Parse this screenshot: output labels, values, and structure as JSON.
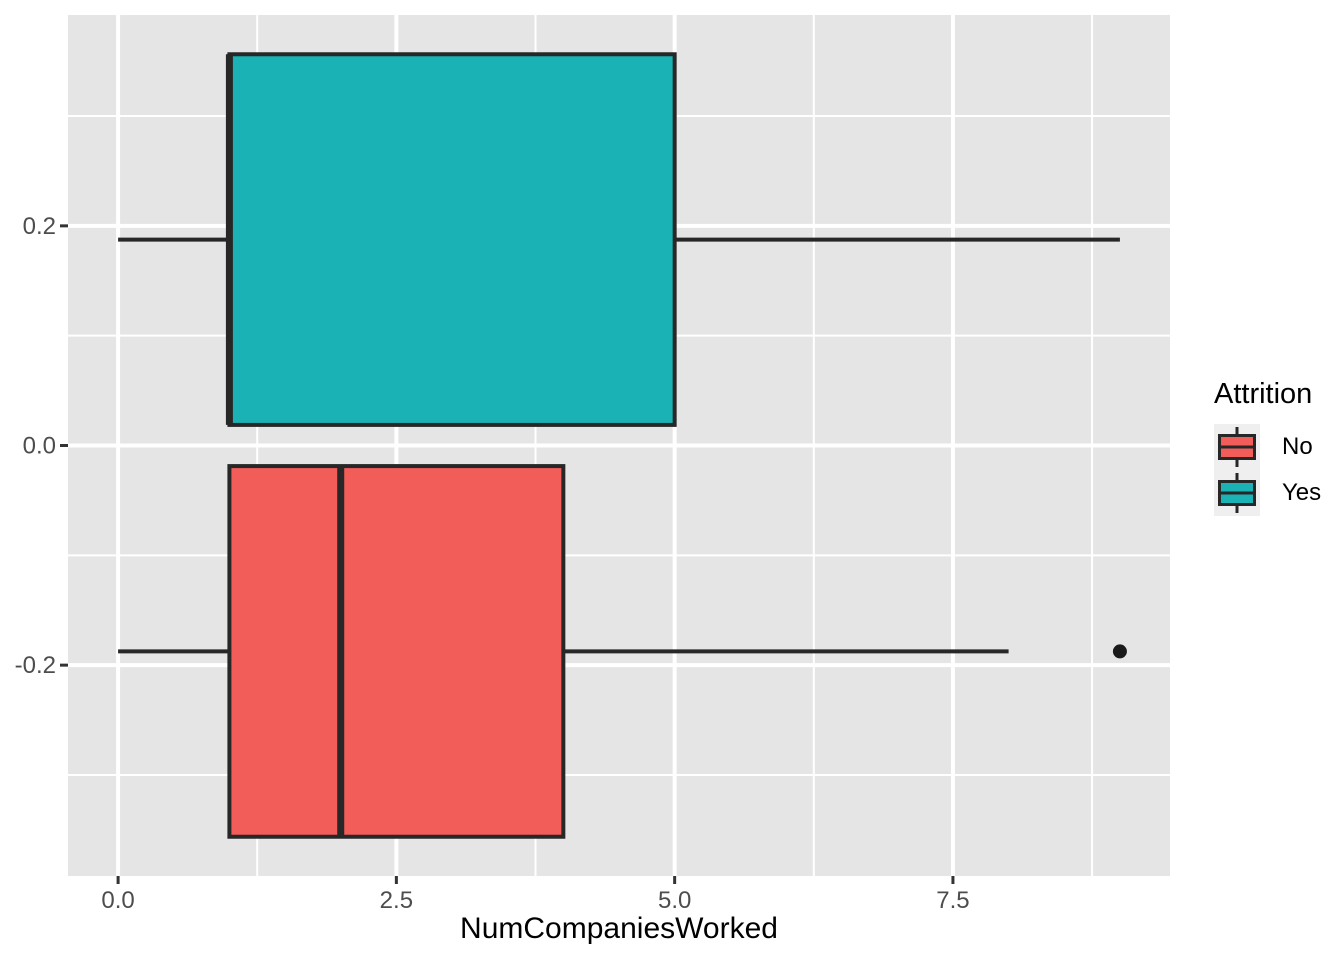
{
  "chart_data": {
    "type": "boxplot",
    "orientation": "horizontal",
    "xlabel": "NumCompaniesWorked",
    "ylabel": "",
    "x_range": [
      -0.45,
      9.45
    ],
    "y_range": [
      -0.392,
      0.392
    ],
    "x_major_ticks": [
      {
        "label": "0.0",
        "value": 0
      },
      {
        "label": "2.5",
        "value": 2.5
      },
      {
        "label": "5.0",
        "value": 5
      },
      {
        "label": "7.5",
        "value": 7.5
      }
    ],
    "x_minor_gridlines": [
      1.25,
      3.75,
      6.25,
      8.75
    ],
    "y_major_ticks": [
      {
        "label": "0.2",
        "value": 0.2
      },
      {
        "label": "0.0",
        "value": 0
      },
      {
        "label": "-0.2",
        "value": -0.2
      }
    ],
    "y_minor_gridlines": [
      0.3,
      0.1,
      -0.1,
      -0.3
    ],
    "groups": [
      {
        "name": "Yes",
        "fill": "#1AB2B4",
        "center": 0.1875,
        "box_half_height": 0.16875,
        "whisker_min": 0,
        "q1": 1,
        "median": 1,
        "q3": 5,
        "whisker_max": 9,
        "outliers": []
      },
      {
        "name": "No",
        "fill": "#F25C59",
        "center": -0.1875,
        "box_half_height": 0.16875,
        "whisker_min": 0,
        "q1": 1,
        "median": 2,
        "q3": 4,
        "whisker_max": 8,
        "outliers": [
          9
        ]
      }
    ],
    "legend": {
      "title": "Attrition",
      "position": "right",
      "items": [
        {
          "label": "No",
          "color": "#F25C59"
        },
        {
          "label": "Yes",
          "color": "#1AB2B4"
        }
      ]
    },
    "colors": {
      "panel_bg": "#E5E5E5",
      "grid": "#FFFFFF",
      "box_border": "#272727",
      "tick_mark": "#333333",
      "tick_label": "#4D4D4D",
      "axis_title": "#000000",
      "legend_key_bg": "#EFEFEF",
      "outlier": "#1A1A1A"
    }
  }
}
